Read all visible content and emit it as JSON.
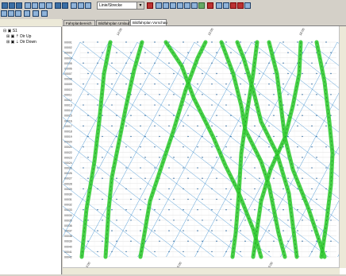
{
  "toolbar": {
    "route_select": "Linie/Strecke",
    "colors": {
      "accent": "#3a6ea5",
      "alert": "#b33333",
      "ok": "#66aa66"
    }
  },
  "tree": {
    "items": [
      {
        "label": "S1",
        "icon": "folder-icon"
      },
      {
        "label": "Dir Up",
        "icon": "track-icon"
      },
      {
        "label": "Dir Down",
        "icon": "track-icon"
      }
    ]
  },
  "tabs": [
    {
      "label": "Fahrplanbereich",
      "active": false
    },
    {
      "label": "Bildfahrplan Umlauf",
      "active": false
    },
    {
      "label": "Bildfahrplan Vorschau",
      "active": true
    }
  ],
  "chart_data": {
    "type": "line",
    "title": "",
    "time_ticks": [
      "14:00",
      "15:00",
      "16:00"
    ],
    "stations": [
      "00001",
      "00002",
      "00003",
      "00004",
      "00005",
      "00006",
      "00007",
      "00008",
      "00009",
      "00010",
      "00011",
      "00012",
      "00013",
      "00014",
      "00015",
      "00016",
      "00017",
      "00018",
      "00019",
      "00020",
      "00021",
      "00022",
      "00023",
      "00024",
      "00025",
      "00026",
      "00027",
      "00028",
      "00029",
      "00030",
      "00031",
      "00032",
      "00033",
      "00034",
      "00035",
      "00036",
      "00037",
      "00038",
      "00039",
      "00040",
      "00041",
      "00042"
    ],
    "line_color_primary": "#33cc33",
    "line_color_secondary": "#3a8fd0"
  }
}
